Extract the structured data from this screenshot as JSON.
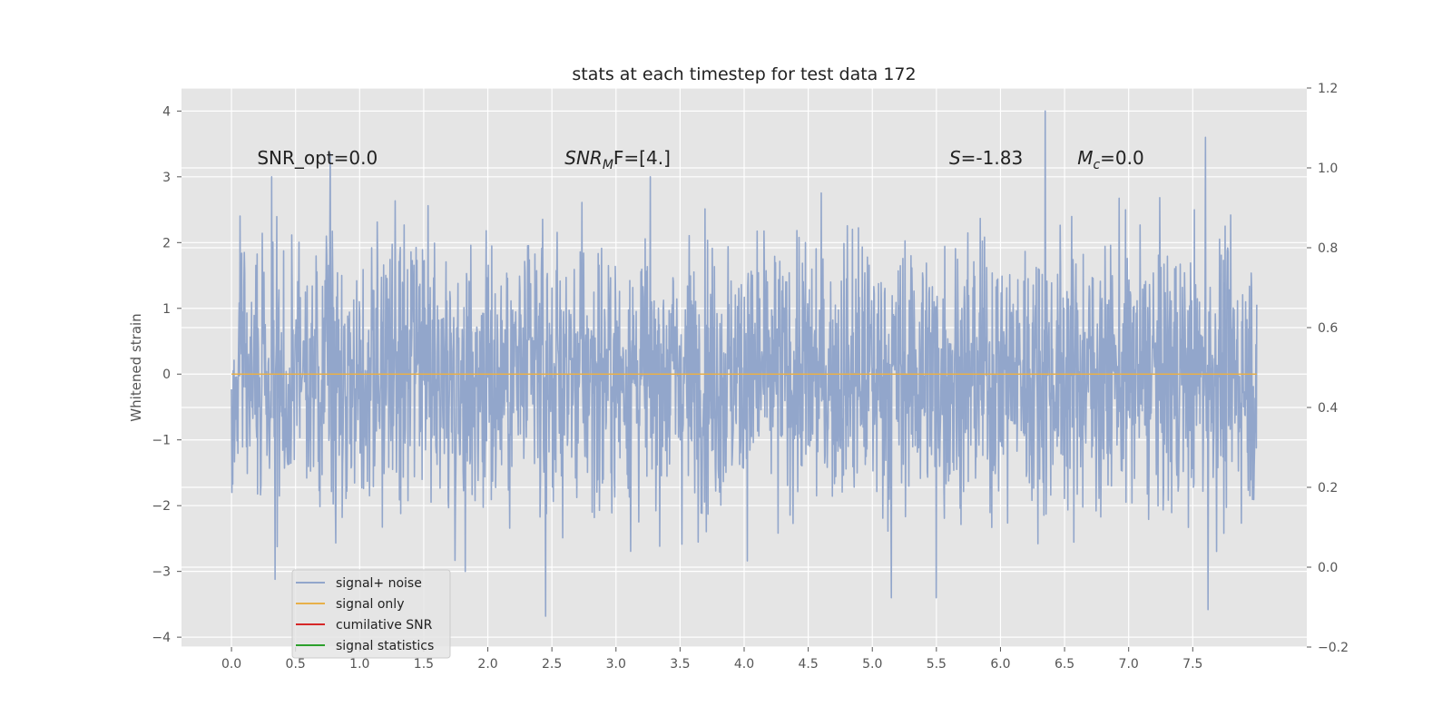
{
  "chart_data": {
    "type": "line",
    "title": "stats at each timestep for test data 172",
    "ylabel": "Whitened strain",
    "xlim": [
      -0.39,
      8.39
    ],
    "ylim": [
      -4.15,
      4.35
    ],
    "y2lim": [
      -0.2,
      1.2
    ],
    "grid": true,
    "legend_position": "lower-left",
    "x_ticks": [
      0.0,
      0.5,
      1.0,
      1.5,
      2.0,
      2.5,
      3.0,
      3.5,
      4.0,
      4.5,
      5.0,
      5.5,
      6.0,
      6.5,
      7.0,
      7.5
    ],
    "x_tick_labels": [
      "0.0",
      "0.5",
      "1.0",
      "1.5",
      "2.0",
      "2.5",
      "3.0",
      "3.5",
      "4.0",
      "4.5",
      "5.0",
      "5.5",
      "6.0",
      "6.5",
      "7.0",
      "7.5"
    ],
    "y_ticks": [
      -4,
      -3,
      -2,
      -1,
      0,
      1,
      2,
      3,
      4
    ],
    "y_tick_labels": [
      "−4",
      "−3",
      "−2",
      "−1",
      "0",
      "1",
      "2",
      "3",
      "4"
    ],
    "y2_ticks": [
      -0.2,
      0.0,
      0.2,
      0.4,
      0.6,
      0.8,
      1.0,
      1.2
    ],
    "y2_tick_labels": [
      "−0.2",
      "0.0",
      "0.2",
      "0.4",
      "0.6",
      "0.8",
      "1.0",
      "1.2"
    ],
    "x_range": [
      0.0,
      7.9995
    ],
    "series": [
      {
        "name": "signal+ noise",
        "color": "#92a6cb",
        "style": "noise",
        "amplitude_std": 1.0,
        "peaks": [
          [
            6.35,
            4.0
          ],
          [
            7.6,
            3.6
          ],
          [
            0.77,
            3.35
          ],
          [
            2.45,
            -3.68
          ],
          [
            7.62,
            -3.58
          ],
          [
            0.34,
            -3.12
          ],
          [
            5.15,
            -3.4
          ],
          [
            5.5,
            -3.4
          ]
        ]
      },
      {
        "name": "signal only",
        "color": "#e8b04a",
        "values_constant": 0.0
      },
      {
        "name": "cumilative SNR",
        "color": "#d62728"
      },
      {
        "name": "signal statistics",
        "color": "#2ca02c"
      }
    ],
    "annotations": [
      {
        "text": "SNR_opt=0.0"
      },
      {
        "text": "SNR",
        "sub": "M",
        "rest": "F=[4.]"
      },
      {
        "text": "S",
        "rest": "=-1.83"
      },
      {
        "text": "M",
        "sub": "c",
        "rest": "=0.0"
      }
    ],
    "colors": {
      "axes_bg": "#e5e5e5",
      "grid": "#ffffff",
      "legend_bg": "#e5e5e5",
      "legend_border": "#cccccc"
    }
  }
}
